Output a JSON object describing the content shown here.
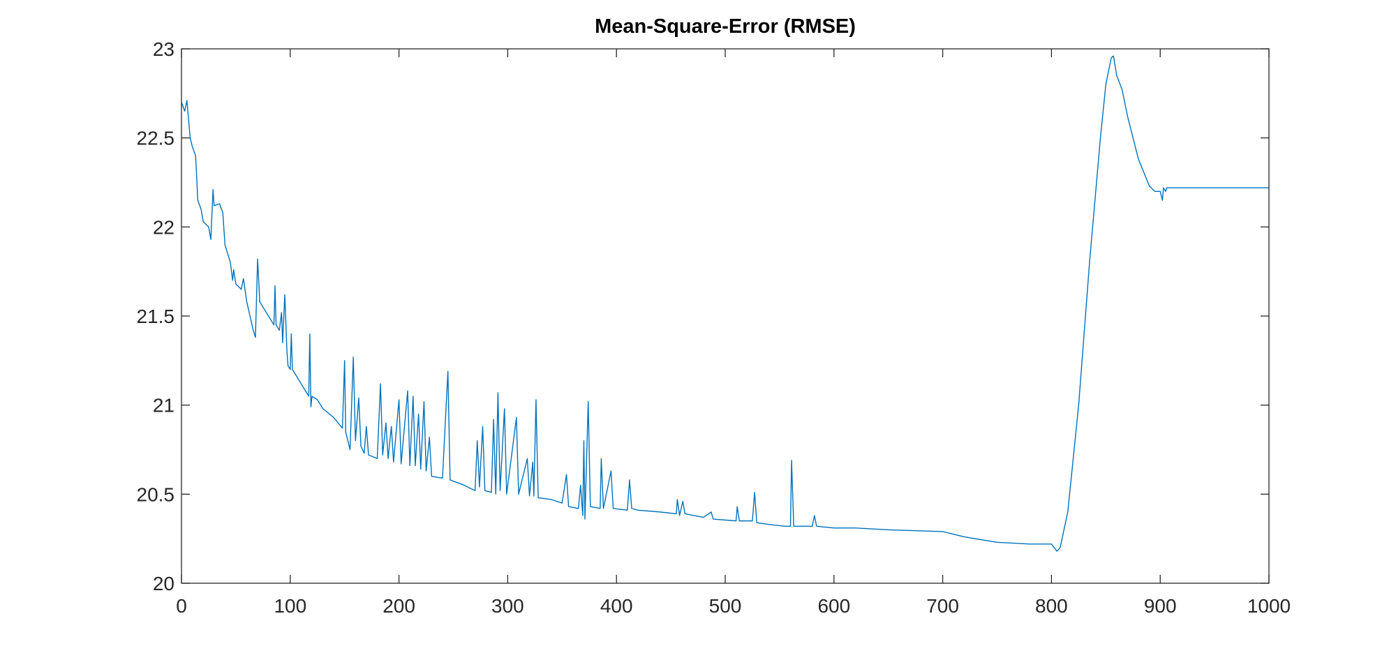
{
  "chart_data": {
    "type": "line",
    "title": "Mean-Square-Error (RMSE)",
    "x": [
      0,
      3,
      5,
      8,
      10,
      13,
      15,
      18,
      20,
      25,
      27,
      29,
      30,
      35,
      38,
      40,
      45,
      47,
      48,
      50,
      55,
      57,
      60,
      63,
      66,
      68,
      70,
      72,
      75,
      80,
      85,
      86,
      87,
      90,
      92,
      93,
      95,
      97,
      98,
      100,
      101,
      102,
      110,
      117,
      118,
      119,
      120,
      125,
      130,
      140,
      148,
      150,
      151,
      155,
      158,
      160,
      163,
      165,
      168,
      170,
      172,
      180,
      183,
      185,
      188,
      190,
      193,
      195,
      200,
      202,
      208,
      210,
      213,
      215,
      218,
      220,
      223,
      225,
      228,
      230,
      240,
      245,
      247,
      260,
      270,
      272,
      274,
      277,
      279,
      285,
      287,
      289,
      291,
      293,
      297,
      299,
      308,
      310,
      318,
      320,
      323,
      324,
      326,
      328,
      340,
      350,
      354,
      356,
      365,
      367,
      369,
      370,
      371,
      374,
      376,
      385,
      386,
      388,
      395,
      397,
      410,
      412,
      414,
      420,
      440,
      455,
      456,
      458,
      461,
      463,
      480,
      487,
      489,
      510,
      511,
      513,
      525,
      527,
      529,
      540,
      555,
      560,
      561,
      563,
      580,
      582,
      584,
      600,
      620,
      650,
      700,
      720,
      750,
      780,
      800,
      805,
      808,
      815,
      825,
      835,
      845,
      850,
      855,
      857,
      860,
      865,
      870,
      875,
      880,
      890,
      895,
      900,
      902,
      903,
      905,
      906,
      1000
    ],
    "values": [
      22.7,
      22.65,
      22.71,
      22.5,
      22.45,
      22.4,
      22.15,
      22.1,
      22.03,
      22.0,
      21.93,
      22.21,
      22.12,
      22.13,
      22.08,
      21.9,
      21.8,
      21.7,
      21.76,
      21.68,
      21.65,
      21.71,
      21.58,
      21.5,
      21.42,
      21.38,
      21.82,
      21.58,
      21.55,
      21.5,
      21.45,
      21.67,
      21.45,
      21.42,
      21.52,
      21.35,
      21.62,
      21.3,
      21.22,
      21.2,
      21.4,
      21.2,
      21.12,
      21.05,
      21.4,
      20.99,
      21.05,
      21.03,
      20.98,
      20.93,
      20.87,
      21.25,
      20.85,
      20.75,
      21.27,
      20.8,
      21.04,
      20.77,
      20.73,
      20.88,
      20.72,
      20.7,
      21.12,
      20.72,
      20.9,
      20.7,
      20.88,
      20.68,
      21.03,
      20.67,
      21.08,
      20.66,
      21.05,
      20.66,
      20.95,
      20.64,
      21.02,
      20.63,
      20.82,
      20.6,
      20.59,
      21.19,
      20.58,
      20.55,
      20.52,
      20.8,
      20.54,
      20.88,
      20.52,
      20.51,
      20.92,
      20.5,
      21.07,
      20.52,
      20.98,
      20.5,
      20.93,
      20.5,
      20.7,
      20.49,
      20.68,
      20.49,
      21.03,
      20.48,
      20.47,
      20.45,
      20.61,
      20.43,
      20.42,
      20.55,
      20.38,
      20.8,
      20.36,
      21.02,
      20.43,
      20.42,
      20.7,
      20.42,
      20.63,
      20.42,
      20.41,
      20.58,
      20.42,
      20.41,
      20.4,
      20.39,
      20.47,
      20.38,
      20.46,
      20.39,
      20.37,
      20.4,
      20.36,
      20.35,
      20.43,
      20.35,
      20.35,
      20.51,
      20.34,
      20.33,
      20.32,
      20.32,
      20.69,
      20.32,
      20.32,
      20.38,
      20.32,
      20.31,
      20.31,
      20.3,
      20.29,
      20.26,
      20.23,
      20.22,
      20.22,
      20.18,
      20.2,
      20.4,
      21.0,
      21.8,
      22.5,
      22.8,
      22.95,
      22.96,
      22.85,
      22.77,
      22.62,
      22.5,
      22.38,
      22.23,
      22.2,
      22.2,
      22.15,
      22.22,
      22.2,
      22.22,
      22.22
    ],
    "color": "#0072bd",
    "xlim": [
      0,
      1000
    ],
    "xticks": [
      0,
      100,
      200,
      300,
      400,
      500,
      600,
      700,
      800,
      900,
      1000
    ],
    "ylim": [
      20,
      23
    ],
    "yticks": [
      20,
      20.5,
      21,
      21.5,
      22,
      22.5,
      23
    ]
  }
}
